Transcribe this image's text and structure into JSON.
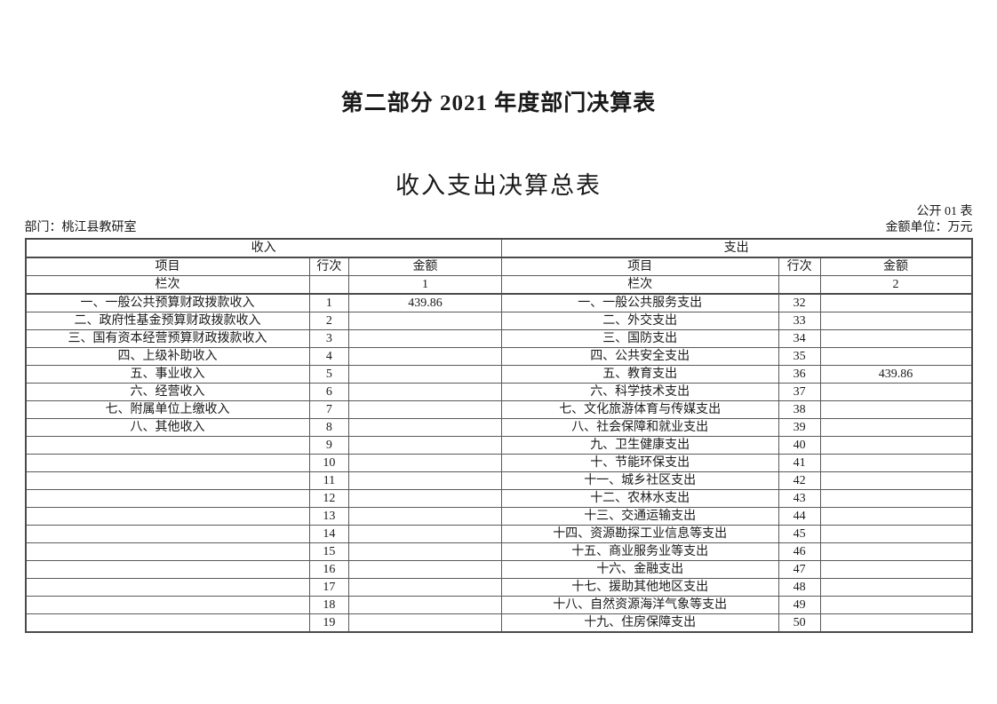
{
  "page": {
    "section_title": "第二部分  2021 年度部门决算表",
    "table_title": "收入支出决算总表",
    "sheet_label": "公开 01 表",
    "department": "部门：桃江县教研室",
    "unit": "金额单位：万元"
  },
  "table": {
    "income_section": "收入",
    "expense_section": "支出",
    "columns": {
      "item": "项目",
      "line": "行次",
      "amount": "金额"
    },
    "index_label": "栏次",
    "income_index": "1",
    "expense_index": "2",
    "income_rows": [
      {
        "label": "一、一般公共预算财政拨款收入",
        "line": "1",
        "amount": "439.86"
      },
      {
        "label": "二、政府性基金预算财政拨款收入",
        "line": "2",
        "amount": ""
      },
      {
        "label": "三、国有资本经营预算财政拨款收入",
        "line": "3",
        "amount": ""
      },
      {
        "label": "四、上级补助收入",
        "line": "4",
        "amount": ""
      },
      {
        "label": "五、事业收入",
        "line": "5",
        "amount": ""
      },
      {
        "label": "六、经营收入",
        "line": "6",
        "amount": ""
      },
      {
        "label": "七、附属单位上缴收入",
        "line": "7",
        "amount": ""
      },
      {
        "label": "八、其他收入",
        "line": "8",
        "amount": ""
      },
      {
        "label": "",
        "line": "9",
        "amount": ""
      },
      {
        "label": "",
        "line": "10",
        "amount": ""
      },
      {
        "label": "",
        "line": "11",
        "amount": ""
      },
      {
        "label": "",
        "line": "12",
        "amount": ""
      },
      {
        "label": "",
        "line": "13",
        "amount": ""
      },
      {
        "label": "",
        "line": "14",
        "amount": ""
      },
      {
        "label": "",
        "line": "15",
        "amount": ""
      },
      {
        "label": "",
        "line": "16",
        "amount": ""
      },
      {
        "label": "",
        "line": "17",
        "amount": ""
      },
      {
        "label": "",
        "line": "18",
        "amount": ""
      },
      {
        "label": "",
        "line": "19",
        "amount": ""
      }
    ],
    "expense_rows": [
      {
        "label": "一、一般公共服务支出",
        "line": "32",
        "amount": ""
      },
      {
        "label": "二、外交支出",
        "line": "33",
        "amount": ""
      },
      {
        "label": "三、国防支出",
        "line": "34",
        "amount": ""
      },
      {
        "label": "四、公共安全支出",
        "line": "35",
        "amount": ""
      },
      {
        "label": "五、教育支出",
        "line": "36",
        "amount": "439.86"
      },
      {
        "label": "六、科学技术支出",
        "line": "37",
        "amount": ""
      },
      {
        "label": "七、文化旅游体育与传媒支出",
        "line": "38",
        "amount": ""
      },
      {
        "label": "八、社会保障和就业支出",
        "line": "39",
        "amount": ""
      },
      {
        "label": "九、卫生健康支出",
        "line": "40",
        "amount": ""
      },
      {
        "label": "十、节能环保支出",
        "line": "41",
        "amount": ""
      },
      {
        "label": "十一、城乡社区支出",
        "line": "42",
        "amount": ""
      },
      {
        "label": "十二、农林水支出",
        "line": "43",
        "amount": ""
      },
      {
        "label": "十三、交通运输支出",
        "line": "44",
        "amount": ""
      },
      {
        "label": "十四、资源勘探工业信息等支出",
        "line": "45",
        "amount": ""
      },
      {
        "label": "十五、商业服务业等支出",
        "line": "46",
        "amount": ""
      },
      {
        "label": "十六、金融支出",
        "line": "47",
        "amount": ""
      },
      {
        "label": "十七、援助其他地区支出",
        "line": "48",
        "amount": ""
      },
      {
        "label": "十八、自然资源海洋气象等支出",
        "line": "49",
        "amount": ""
      },
      {
        "label": "十九、住房保障支出",
        "line": "50",
        "amount": ""
      }
    ]
  }
}
